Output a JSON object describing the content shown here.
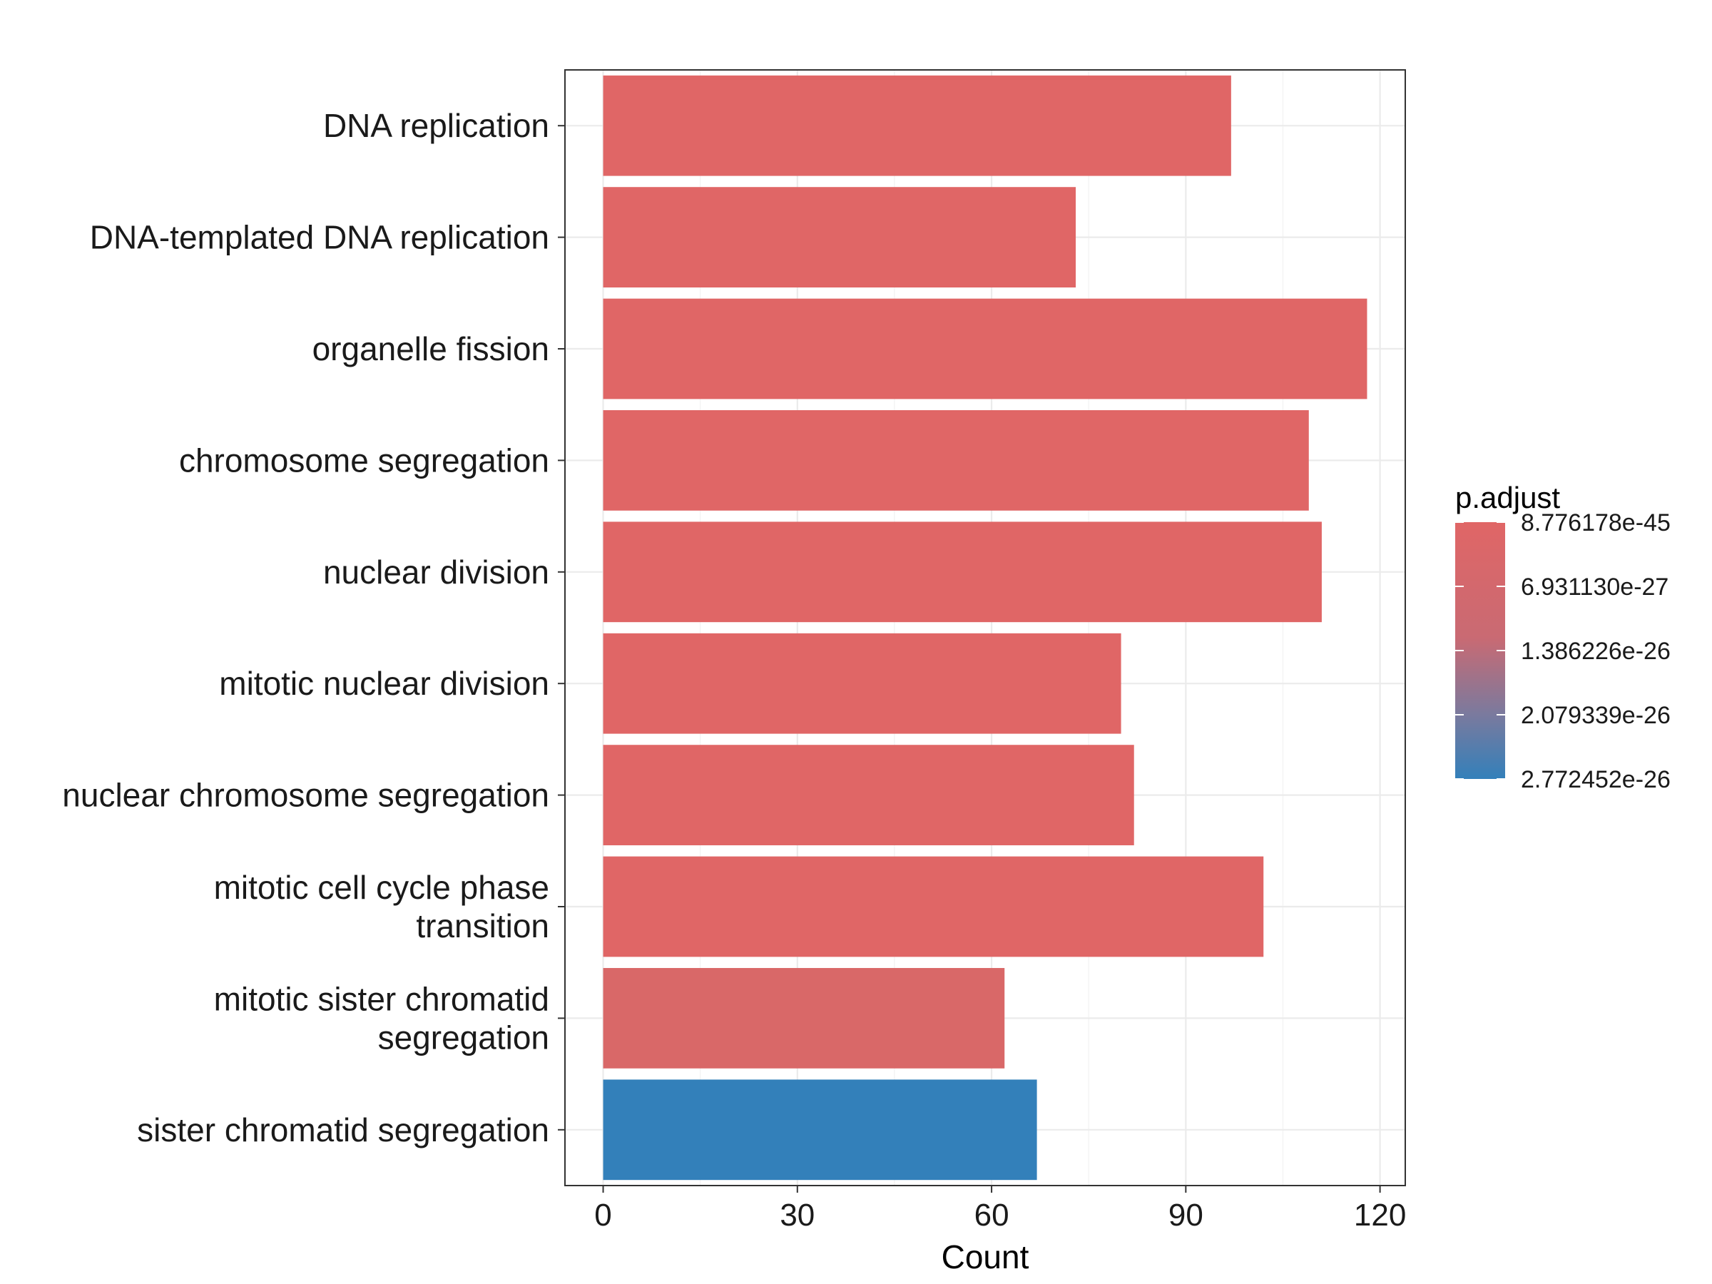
{
  "chart_data": {
    "type": "bar",
    "orientation": "horizontal",
    "categories": [
      "DNA replication",
      "DNA-templated DNA replication",
      "organelle fission",
      "chromosome segregation",
      "nuclear division",
      "mitotic nuclear division",
      "nuclear chromosome segregation",
      "mitotic cell cycle phase transition",
      "mitotic sister chromatid segregation",
      "sister chromatid segregation"
    ],
    "category_lines": [
      [
        "DNA replication"
      ],
      [
        "DNA-templated DNA replication"
      ],
      [
        "organelle fission"
      ],
      [
        "chromosome segregation"
      ],
      [
        "nuclear division"
      ],
      [
        "mitotic nuclear division"
      ],
      [
        "nuclear chromosome segregation"
      ],
      [
        "mitotic cell cycle phase",
        "transition"
      ],
      [
        "mitotic sister chromatid",
        "segregation"
      ],
      [
        "sister chromatid segregation"
      ]
    ],
    "values": [
      97,
      73,
      118,
      109,
      111,
      80,
      82,
      102,
      62,
      67
    ],
    "bar_colors": [
      "#E06666",
      "#E06666",
      "#E06666",
      "#E06666",
      "#E06666",
      "#E06666",
      "#E06666",
      "#E06666",
      "#D96868",
      "#3380BA"
    ],
    "title": "",
    "xlabel": "Count",
    "ylabel": "",
    "xlim": [
      -5.9,
      123.9
    ],
    "xticks": [
      0,
      30,
      60,
      90,
      120
    ],
    "grid": true,
    "legend": {
      "title": "p.adjust",
      "position": "right",
      "labels": [
        "8.776178e-45",
        "6.931130e-27",
        "1.386226e-26",
        "2.079339e-26",
        "2.772452e-26"
      ],
      "color_high": "#E06666",
      "color_low": "#3380BA"
    }
  }
}
